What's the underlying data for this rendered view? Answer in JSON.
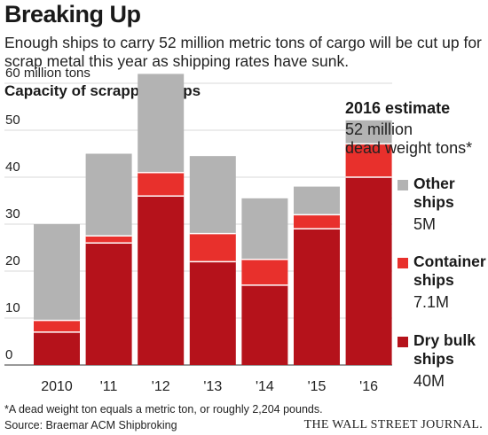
{
  "header": {
    "title": "Breaking Up",
    "subtitle": "Enough ships to carry 52 million metric tons of cargo will be cut up for scrap metal this year as shipping rates have sunk."
  },
  "section_title": "Capacity of scrapped ships",
  "annotation": {
    "line1": "2016 estimate",
    "line2": "52 million",
    "line3": "dead weight tons*"
  },
  "legend": [
    {
      "line1": "Other",
      "line2": "ships",
      "value": "5M",
      "color": "#b3b3b3"
    },
    {
      "line1": "Container",
      "line2": "ships",
      "value": "7.1M",
      "color": "#e8302c"
    },
    {
      "line1": "Dry bulk",
      "line2": "ships",
      "value": "40M",
      "color": "#b5121b"
    }
  ],
  "footnote": "*A dead weight ton equals a metric ton, or roughly 2,204 pounds.",
  "source": "Source: Braemar ACM Shipbroking",
  "publisher": "THE WALL STREET JOURNAL.",
  "chart_data": {
    "type": "bar",
    "stacked": true,
    "categories": [
      "2010",
      "'11",
      "'12",
      "'13",
      "'14",
      "'15",
      "'16"
    ],
    "series": [
      {
        "name": "Dry bulk ships",
        "color": "#b5121b",
        "values": [
          7,
          26,
          36,
          22,
          17,
          29,
          40
        ]
      },
      {
        "name": "Container ships",
        "color": "#e8302c",
        "values": [
          2.5,
          1.5,
          5,
          6,
          5.5,
          3,
          7.1
        ]
      },
      {
        "name": "Other ships",
        "color": "#b3b3b3",
        "values": [
          20.5,
          17.5,
          21,
          16.5,
          13,
          6,
          5
        ]
      }
    ],
    "y_tick_labels": [
      "0",
      "10",
      "20",
      "30",
      "40",
      "50",
      "60 million tons"
    ],
    "y_ticks": [
      0,
      10,
      20,
      30,
      40,
      50,
      60
    ],
    "ylim": [
      0,
      62
    ],
    "grid": true
  }
}
